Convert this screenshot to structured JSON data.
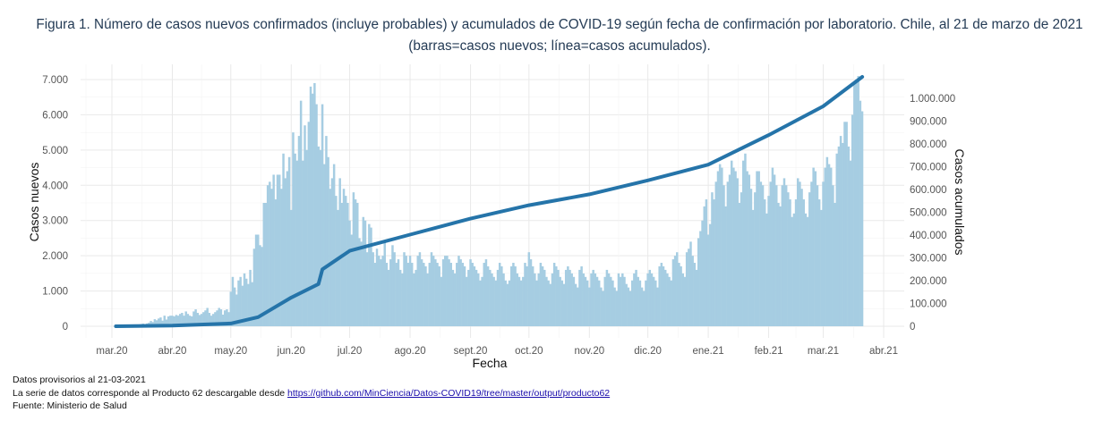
{
  "title": "Figura 1. Número de casos nuevos confirmados (incluye probables) y acumulados de COVID-19 según fecha de confirmación por laboratorio. Chile, al 21 de marzo de 2021 (barras=casos nuevos; línea=casos acumulados).",
  "footer": {
    "note": "Datos provisorios al 21-03-2021",
    "series_text": "La serie de datos corresponde al Producto 62 descargable desde ",
    "link": "https://github.com/MinCiencia/Datos-COVID19/tree/master/output/producto62",
    "source": "Fuente: Ministerio de Salud"
  },
  "chart_data": {
    "type": "bar+line",
    "xlabel": "Fecha",
    "ylabel_left": "Casos nuevos",
    "ylabel_right": "Casos acumulados",
    "x_ticks": [
      {
        "date": "2020-03-01",
        "label": "mar.20"
      },
      {
        "date": "2020-04-01",
        "label": "abr.20"
      },
      {
        "date": "2020-05-01",
        "label": "may.20"
      },
      {
        "date": "2020-06-01",
        "label": "jun.20"
      },
      {
        "date": "2020-07-01",
        "label": "jul.20"
      },
      {
        "date": "2020-08-01",
        "label": "ago.20"
      },
      {
        "date": "2020-09-01",
        "label": "sept.20"
      },
      {
        "date": "2020-10-01",
        "label": "oct.20"
      },
      {
        "date": "2020-11-01",
        "label": "nov.20"
      },
      {
        "date": "2020-12-01",
        "label": "dic.20"
      },
      {
        "date": "2021-01-01",
        "label": "ene.21"
      },
      {
        "date": "2021-02-01",
        "label": "feb.21"
      },
      {
        "date": "2021-03-01",
        "label": "mar.21"
      },
      {
        "date": "2021-04-01",
        "label": "abr.21"
      }
    ],
    "y_left": {
      "range": [
        0,
        7000
      ],
      "ticks": [
        0,
        1000,
        2000,
        3000,
        4000,
        5000,
        6000,
        7000
      ],
      "tick_labels": [
        "0",
        "1.000",
        "2.000",
        "3.000",
        "4.000",
        "5.000",
        "6.000",
        "7.000"
      ]
    },
    "y_right": {
      "range": [
        0,
        1000000
      ],
      "ticks": [
        0,
        100000,
        200000,
        300000,
        400000,
        500000,
        600000,
        700000,
        800000,
        900000,
        1000000
      ],
      "tick_labels": [
        "0",
        "100.000",
        "200.000",
        "300.000",
        "400.000",
        "500.000",
        "600.000",
        "700.000",
        "800.000",
        "900.000",
        "1.000.000"
      ]
    },
    "grid": true,
    "colors": {
      "bars": "#a6cde2",
      "line": "#2574a9"
    },
    "new_cases_by_month": [
      {
        "month": "2020-03",
        "first_day": 3,
        "values": [
          1,
          0,
          2,
          1,
          2,
          1,
          3,
          4,
          10,
          10,
          20,
          15,
          30,
          60,
          75,
          60,
          80,
          100,
          150,
          120,
          200,
          170,
          220,
          250,
          160,
          300,
          190,
          280,
          300
        ]
      },
      {
        "month": "2020-04",
        "first_day": 1,
        "values": [
          300,
          280,
          320,
          300,
          350,
          380,
          300,
          420,
          350,
          300,
          280,
          420,
          480,
          380,
          320,
          350,
          400,
          450,
          520,
          380,
          300,
          350,
          400,
          450,
          520,
          480,
          330,
          450,
          480,
          400
        ]
      },
      {
        "month": "2020-05",
        "first_day": 1,
        "values": [
          980,
          1400,
          1100,
          900,
          1300,
          1400,
          1150,
          1500,
          1350,
          1200,
          1600,
          1250,
          2200,
          2600,
          2600,
          2300,
          2250,
          3500,
          3500,
          4000,
          4100,
          3900,
          4300,
          3600,
          4300,
          4300,
          3900,
          4900,
          4200,
          4400,
          4800
        ]
      },
      {
        "month": "2020-06",
        "first_day": 1,
        "values": [
          3300,
          5500,
          4900,
          4700,
          5400,
          6400,
          4700,
          5700,
          5000,
          5800,
          6800,
          6600,
          6900,
          6300,
          5100,
          5000,
          6300,
          4600,
          5400,
          4800,
          3900,
          4200,
          4600,
          3700,
          3300,
          4200,
          3500,
          3900,
          3700,
          3500
        ]
      },
      {
        "month": "2020-07",
        "first_day": 1,
        "values": [
          3000,
          2600,
          3800,
          3600,
          3500,
          2500,
          2400,
          3100,
          3000,
          2100,
          2900,
          2800,
          2100,
          1800,
          2200,
          2000,
          1900,
          2000,
          2400,
          1800,
          1600,
          1900,
          2300,
          2100,
          1800,
          1900,
          1600,
          1500,
          2100,
          2000,
          1800
        ]
      },
      {
        "month": "2020-08",
        "first_day": 1,
        "values": [
          2000,
          1800,
          1500,
          1600,
          2000,
          2100,
          1900,
          1800,
          1700,
          1500,
          1800,
          2100,
          2000,
          1900,
          1800,
          1700,
          1400,
          1900,
          2000,
          2000,
          1900,
          1800,
          1600,
          1500,
          1800,
          2000,
          1900,
          1800,
          1700,
          1400,
          1600
        ]
      },
      {
        "month": "2020-09",
        "first_day": 1,
        "values": [
          1900,
          1800,
          1700,
          1600,
          1500,
          1300,
          1400,
          1800,
          1900,
          1700,
          1600,
          1500,
          1400,
          1300,
          1600,
          1800,
          1700,
          1500,
          1300,
          1200,
          1300,
          1700,
          1800,
          1700,
          1500,
          1400,
          1300,
          1400,
          1800,
          1700
        ]
      },
      {
        "month": "2020-10",
        "first_day": 1,
        "values": [
          2100,
          1900,
          1700,
          1500,
          1300,
          1500,
          1800,
          1700,
          1600,
          1400,
          1300,
          1200,
          1500,
          1800,
          1700,
          1600,
          1400,
          1300,
          1200,
          1600,
          1700,
          1600,
          1500,
          1400,
          1200,
          1100,
          1600,
          1700,
          1500,
          1400,
          1300
        ]
      },
      {
        "month": "2020-11",
        "first_day": 1,
        "values": [
          1100,
          1500,
          1600,
          1500,
          1400,
          1300,
          1100,
          1000,
          1400,
          1600,
          1500,
          1400,
          1300,
          1100,
          1000,
          1500,
          1400,
          1500,
          1400,
          1200,
          1100,
          1000,
          1300,
          1500,
          1600,
          1400,
          1300,
          1100,
          1000,
          1300
        ]
      },
      {
        "month": "2020-12",
        "first_day": 1,
        "values": [
          1500,
          1600,
          1500,
          1400,
          1300,
          1100,
          1700,
          1800,
          1700,
          1600,
          1500,
          1400,
          1300,
          1900,
          2000,
          2100,
          1800,
          1700,
          1500,
          1400,
          2100,
          2200,
          2400,
          2000,
          1800,
          1600,
          2500,
          2700,
          3000,
          3400,
          3600
        ]
      },
      {
        "month": "2021-01",
        "first_day": 1,
        "values": [
          2600,
          2900,
          3800,
          3600,
          4100,
          4400,
          4600,
          4500,
          4000,
          3400,
          4100,
          4300,
          4700,
          4500,
          4400,
          4200,
          3500,
          3800,
          4700,
          4900,
          4400,
          4300,
          3900,
          3300,
          3800,
          4400,
          4400,
          4100,
          4000,
          3600,
          3200
        ]
      },
      {
        "month": "2021-02",
        "first_day": 1,
        "values": [
          3700,
          4100,
          4500,
          4300,
          4000,
          3500,
          3400,
          4000,
          4200,
          4000,
          3800,
          3600,
          3100,
          3200,
          3600,
          4200,
          4100,
          3900,
          3600,
          3200,
          3100,
          3800,
          4100,
          4500,
          4400,
          4000,
          3600,
          3300
        ]
      },
      {
        "month": "2021-03",
        "first_day": 1,
        "values": [
          4100,
          4500,
          4800,
          4600,
          4500,
          4000,
          3500,
          4900,
          5100,
          5400,
          5200,
          5800,
          5800,
          5100,
          4700,
          6000,
          6900,
          7000,
          7100,
          6400,
          6100
        ]
      }
    ],
    "cumulative": [
      {
        "date": "2020-03-03",
        "value": 1
      },
      {
        "date": "2020-04-01",
        "value": 3000
      },
      {
        "date": "2020-05-01",
        "value": 12000
      },
      {
        "date": "2020-05-15",
        "value": 40000
      },
      {
        "date": "2020-06-01",
        "value": 126000
      },
      {
        "date": "2020-06-15",
        "value": 185000
      },
      {
        "date": "2020-06-17",
        "value": 250000
      },
      {
        "date": "2020-07-01",
        "value": 331000
      },
      {
        "date": "2020-08-01",
        "value": 402000
      },
      {
        "date": "2020-09-01",
        "value": 472000
      },
      {
        "date": "2020-10-01",
        "value": 531000
      },
      {
        "date": "2020-11-01",
        "value": 579000
      },
      {
        "date": "2020-12-01",
        "value": 640000
      },
      {
        "date": "2021-01-01",
        "value": 709000
      },
      {
        "date": "2021-02-01",
        "value": 839000
      },
      {
        "date": "2021-03-01",
        "value": 965000
      },
      {
        "date": "2021-03-21",
        "value": 1094000
      }
    ]
  }
}
